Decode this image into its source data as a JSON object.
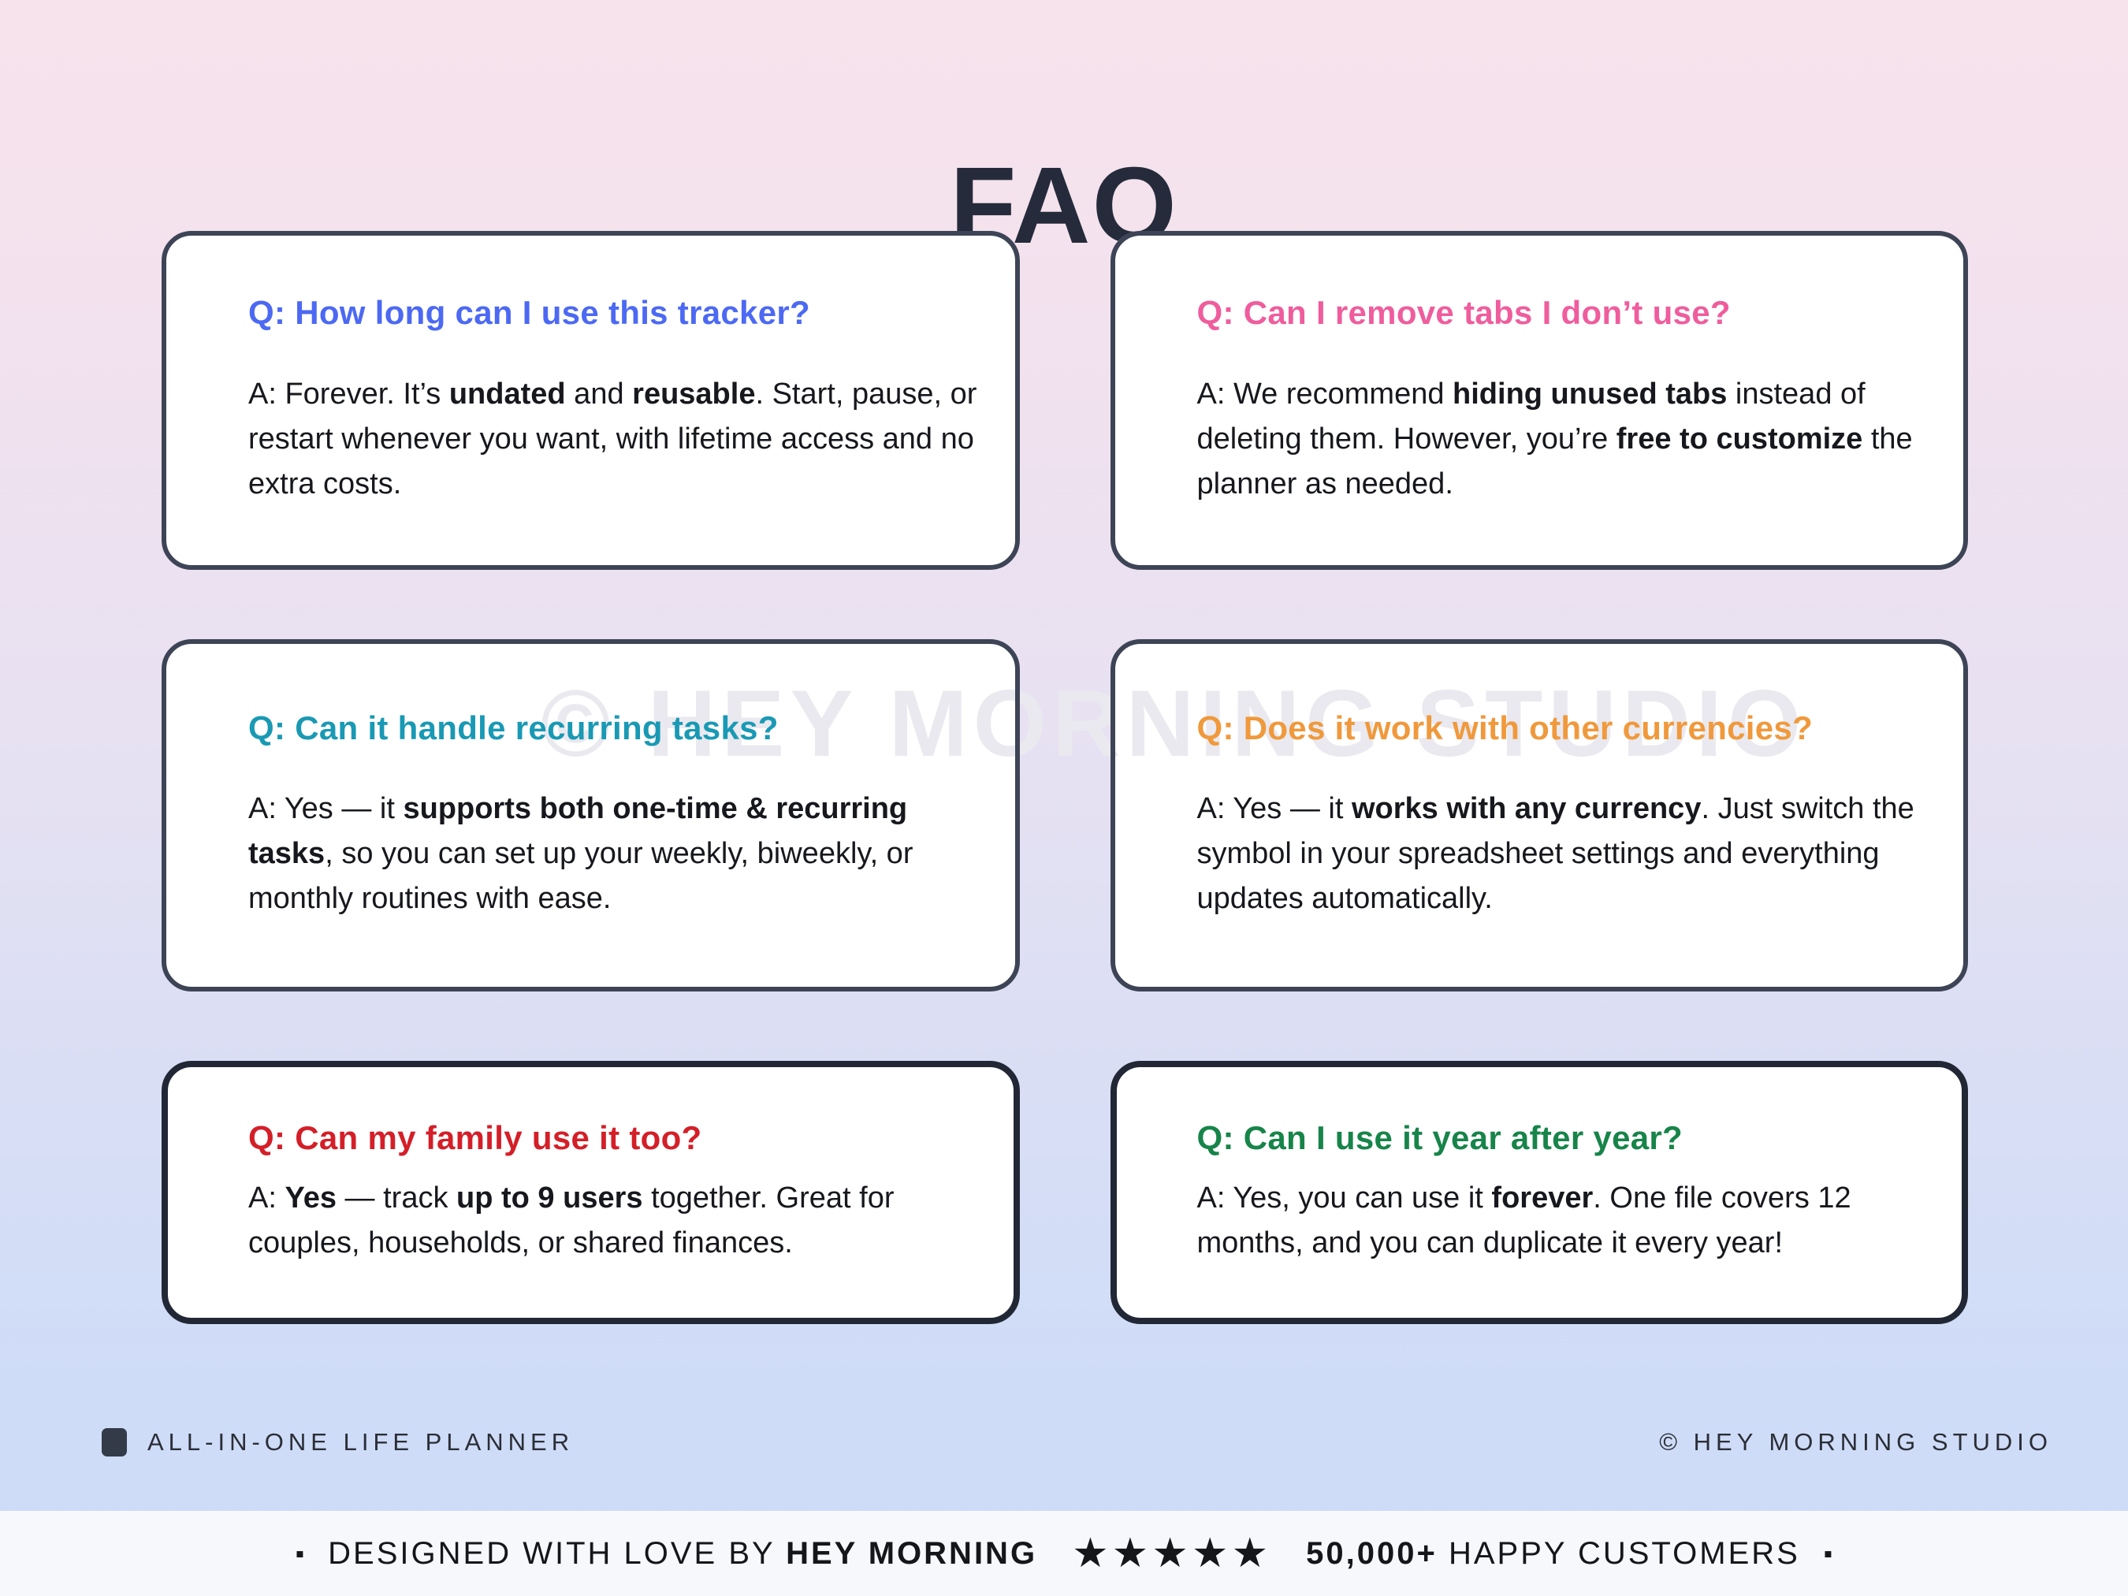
{
  "title": "FAQ",
  "watermark": "© HEY MORNING STUDIO",
  "cards": [
    {
      "question": "Q: How long can I use this tracker?",
      "color": "#4c69f3",
      "answer": [
        {
          "t": "A: Forever. It’s "
        },
        {
          "t": "undated",
          "b": true
        },
        {
          "t": " and "
        },
        {
          "t": "reusable",
          "b": true
        },
        {
          "t": ". Start, pause, or restart whenever you want, with lifetime access and no extra costs."
        }
      ]
    },
    {
      "question": "Q: Can I remove tabs I don’t use?",
      "color": "#ef5d9d",
      "answer": [
        {
          "t": "A: We recommend "
        },
        {
          "t": "hiding unused tabs",
          "b": true
        },
        {
          "t": " instead of deleting them. However, you’re "
        },
        {
          "t": "free to customize",
          "b": true
        },
        {
          "t": " the planner as needed."
        }
      ]
    },
    {
      "question": "Q: Can it handle recurring tasks?",
      "color": "#1999b4",
      "answer": [
        {
          "t": "A: Yes — it "
        },
        {
          "t": "supports both one-time & recurring tasks",
          "b": true
        },
        {
          "t": ", so you can set up your weekly, biweekly, or monthly routines with ease."
        }
      ]
    },
    {
      "question": "Q: Does it work with other currencies?",
      "color": "#f0993c",
      "answer": [
        {
          "t": "A: Yes — it "
        },
        {
          "t": "works with any currency",
          "b": true
        },
        {
          "t": ". Just switch the symbol in your spreadsheet settings and everything updates automatically."
        }
      ]
    },
    {
      "question": "Q: Can my family use it too?",
      "color": "#d41f28",
      "answer": [
        {
          "t": "A: "
        },
        {
          "t": "Yes",
          "b": true
        },
        {
          "t": " — track "
        },
        {
          "t": "up to 9 users",
          "b": true
        },
        {
          "t": " together. Great for couples, households, or shared finances."
        }
      ]
    },
    {
      "question": "Q: Can I use it year after year?",
      "color": "#178449",
      "answer": [
        {
          "t": "A: Yes, you can use it "
        },
        {
          "t": "forever",
          "b": true
        },
        {
          "t": ". One file covers 12 months, and you can duplicate it every year!"
        }
      ]
    }
  ],
  "footer": {
    "left_label": "ALL-IN-ONE LIFE PLANNER",
    "right_label": "© HEY MORNING STUDIO"
  },
  "bottom_bar": {
    "lead_bullet": "▪",
    "designed_text": "DESIGNED WITH LOVE BY ",
    "brand": "HEY MORNING",
    "stars": "★★★★★",
    "customers_count": "50,000+",
    "customers_text": " HAPPY CUSTOMERS",
    "tail_bullet": "▪"
  },
  "colors": {
    "title": "#262b3b",
    "card_border": "#3d4456",
    "card_border_bottom_row": "#212735",
    "answer_text": "#17181d",
    "background_top": "#f7e3ec",
    "background_bottom": "#cddbf8",
    "bottom_bar_background": "#f7f8fb",
    "watermark": "#e9e9ef"
  }
}
